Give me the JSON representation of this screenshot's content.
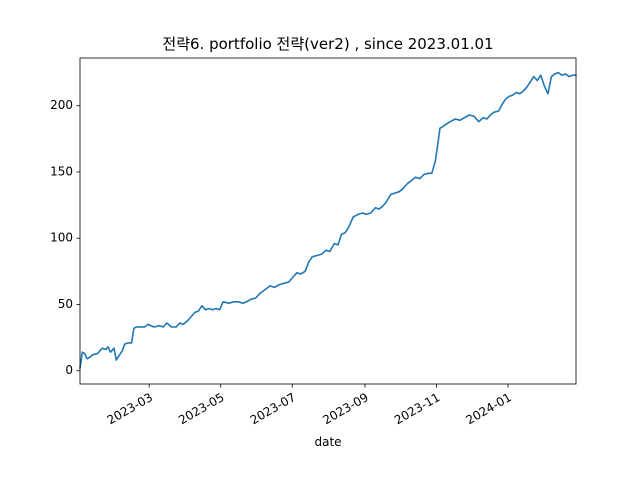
{
  "chart_data": {
    "type": "line",
    "title": "전략6. portfolio 전략(ver2) , since 2023.01.01",
    "xlabel": "date",
    "ylabel": "",
    "grid": false,
    "legend": "none",
    "xlim": [
      "2023-01-01",
      "2024-02-28"
    ],
    "ylim": [
      -10,
      236
    ],
    "xticks": [
      "2023-03",
      "2023-05",
      "2023-07",
      "2023-09",
      "2023-11",
      "2024-01"
    ],
    "yticks": [
      0,
      50,
      100,
      150,
      200
    ],
    "line_color": "#1f77b4",
    "series": [
      {
        "x": [
          "2023-01-01",
          "2023-01-03",
          "2023-01-05",
          "2023-01-07",
          "2023-01-09",
          "2023-01-12",
          "2023-01-16",
          "2023-01-20",
          "2023-01-23",
          "2023-01-25",
          "2023-01-27",
          "2023-01-30",
          "2023-02-01",
          "2023-02-03",
          "2023-02-06",
          "2023-02-08",
          "2023-02-11",
          "2023-02-14",
          "2023-02-16",
          "2023-02-18",
          "2023-02-22",
          "2023-02-25",
          "2023-02-28",
          "2023-03-05",
          "2023-03-10",
          "2023-03-13",
          "2023-03-16",
          "2023-03-20",
          "2023-03-24",
          "2023-03-27",
          "2023-03-30",
          "2023-04-03",
          "2023-04-06",
          "2023-04-09",
          "2023-04-12",
          "2023-04-15",
          "2023-04-18",
          "2023-04-21",
          "2023-04-24",
          "2023-04-27",
          "2023-04-30",
          "2023-05-03",
          "2023-05-08",
          "2023-05-12",
          "2023-05-16",
          "2023-05-20",
          "2023-05-23",
          "2023-05-27",
          "2023-05-31",
          "2023-06-03",
          "2023-06-06",
          "2023-06-09",
          "2023-06-12",
          "2023-06-16",
          "2023-06-20",
          "2023-06-24",
          "2023-06-28",
          "2023-07-01",
          "2023-07-05",
          "2023-07-08",
          "2023-07-12",
          "2023-07-15",
          "2023-07-18",
          "2023-07-22",
          "2023-07-26",
          "2023-07-30",
          "2023-08-02",
          "2023-08-06",
          "2023-08-09",
          "2023-08-12",
          "2023-08-15",
          "2023-08-18",
          "2023-08-22",
          "2023-08-26",
          "2023-08-30",
          "2023-09-02",
          "2023-09-06",
          "2023-09-10",
          "2023-09-13",
          "2023-09-16",
          "2023-09-19",
          "2023-09-23",
          "2023-09-26",
          "2023-09-30",
          "2023-10-03",
          "2023-10-07",
          "2023-10-10",
          "2023-10-14",
          "2023-10-18",
          "2023-10-21",
          "2023-10-25",
          "2023-10-28",
          "2023-10-31",
          "2023-11-02",
          "2023-11-04",
          "2023-11-06",
          "2023-11-09",
          "2023-11-13",
          "2023-11-17",
          "2023-11-21",
          "2023-11-25",
          "2023-11-29",
          "2023-12-03",
          "2023-12-07",
          "2023-12-11",
          "2023-12-14",
          "2023-12-17",
          "2023-12-20",
          "2023-12-24",
          "2023-12-27",
          "2023-12-30",
          "2024-01-02",
          "2024-01-05",
          "2024-01-08",
          "2024-01-11",
          "2024-01-14",
          "2024-01-17",
          "2024-01-20",
          "2024-01-23",
          "2024-01-26",
          "2024-01-29",
          "2024-02-01",
          "2024-02-04",
          "2024-02-07",
          "2024-02-10",
          "2024-02-13",
          "2024-02-16",
          "2024-02-19",
          "2024-02-22",
          "2024-02-25",
          "2024-02-28"
        ],
        "y": [
          2,
          14,
          13,
          9,
          10,
          12,
          13,
          17,
          16,
          18,
          14,
          17,
          8,
          11,
          15,
          20,
          21,
          21,
          32,
          33,
          33,
          33,
          35,
          33,
          34,
          33,
          36,
          33,
          33,
          36,
          35,
          38,
          41,
          44,
          45,
          49,
          46,
          47,
          46,
          47,
          46,
          52,
          51,
          52,
          52,
          51,
          52,
          54,
          55,
          58,
          60,
          62,
          64,
          63,
          65,
          66,
          67,
          70,
          74,
          73,
          75,
          82,
          86,
          87,
          88,
          91,
          90,
          96,
          95,
          103,
          104,
          108,
          116,
          118,
          119,
          118,
          119,
          123,
          122,
          124,
          127,
          133,
          134,
          135,
          137,
          141,
          143,
          146,
          145,
          148,
          149,
          149,
          158,
          170,
          183,
          184,
          186,
          188,
          190,
          189,
          191,
          193,
          192,
          188,
          191,
          190,
          193,
          195,
          196,
          201,
          205,
          207,
          208,
          210,
          209,
          211,
          214,
          218,
          222,
          219,
          223,
          215,
          209,
          222,
          224,
          225,
          223,
          224,
          222,
          223,
          223
        ]
      }
    ]
  }
}
